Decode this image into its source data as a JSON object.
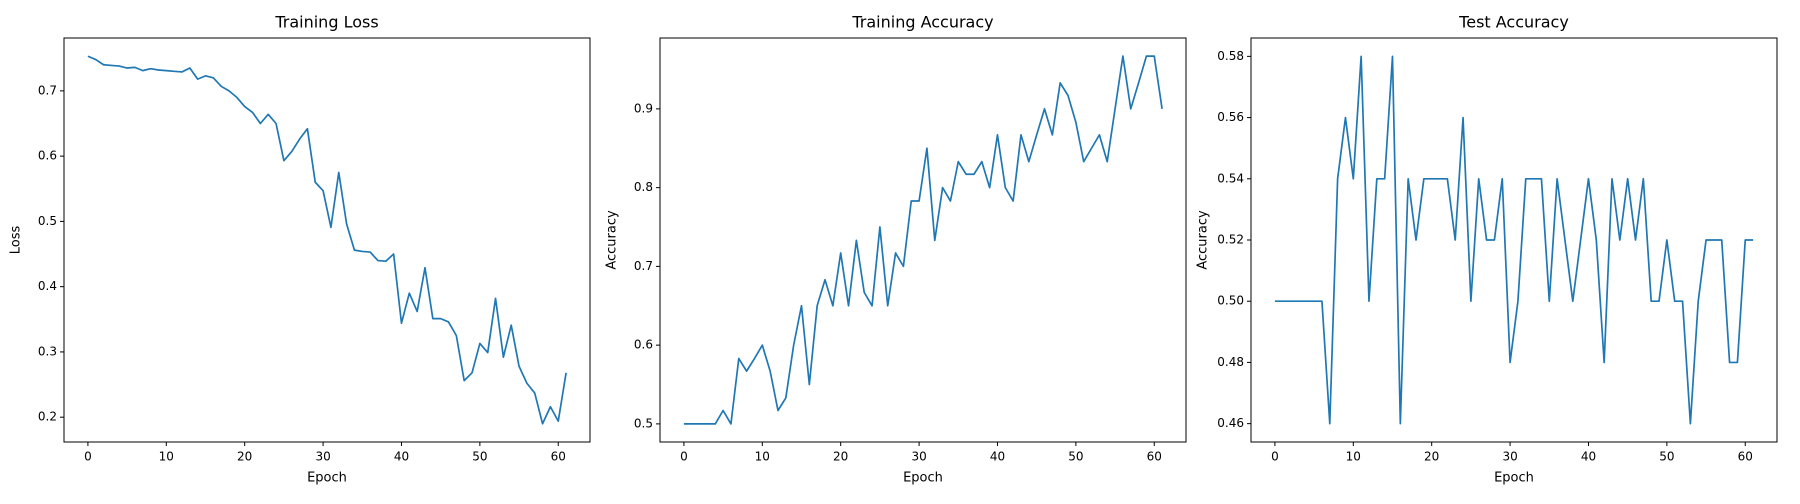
{
  "chart_data": [
    {
      "type": "line",
      "title": "Training Loss",
      "x_label": "Epoch",
      "y_label": "Loss",
      "x": [
        0,
        1,
        2,
        3,
        4,
        5,
        6,
        7,
        8,
        9,
        10,
        11,
        12,
        13,
        14,
        15,
        16,
        17,
        18,
        19,
        20,
        21,
        22,
        23,
        24,
        25,
        26,
        27,
        28,
        29,
        30,
        31,
        32,
        33,
        34,
        35,
        36,
        37,
        38,
        39,
        40,
        41,
        42,
        43,
        44,
        45,
        46,
        47,
        48,
        49,
        50,
        51,
        52,
        53,
        54,
        55,
        56,
        57,
        58,
        59,
        60,
        61
      ],
      "values": [
        0.753,
        0.748,
        0.74,
        0.739,
        0.738,
        0.735,
        0.736,
        0.731,
        0.734,
        0.732,
        0.731,
        0.73,
        0.729,
        0.735,
        0.718,
        0.723,
        0.72,
        0.707,
        0.7,
        0.69,
        0.676,
        0.667,
        0.65,
        0.664,
        0.65,
        0.593,
        0.607,
        0.626,
        0.642,
        0.56,
        0.547,
        0.491,
        0.575,
        0.496,
        0.456,
        0.454,
        0.453,
        0.44,
        0.439,
        0.45,
        0.344,
        0.39,
        0.362,
        0.429,
        0.351,
        0.351,
        0.346,
        0.325,
        0.256,
        0.268,
        0.313,
        0.299,
        0.382,
        0.292,
        0.341,
        0.278,
        0.252,
        0.237,
        0.19,
        0.216,
        0.194,
        0.268
      ],
      "color": "#1f77b4",
      "xlim": [
        -3.05,
        64.05
      ],
      "xticks": [
        0,
        10,
        20,
        30,
        40,
        50,
        60
      ],
      "ylim": [
        0.162,
        0.781
      ],
      "yticks": [
        0.2,
        0.3,
        0.4,
        0.5,
        0.6,
        0.7
      ],
      "grid": false
    },
    {
      "type": "line",
      "title": "Training Accuracy",
      "x_label": "Epoch",
      "y_label": "Accuracy",
      "x": [
        0,
        1,
        2,
        3,
        4,
        5,
        6,
        7,
        8,
        9,
        10,
        11,
        12,
        13,
        14,
        15,
        16,
        17,
        18,
        19,
        20,
        21,
        22,
        23,
        24,
        25,
        26,
        27,
        28,
        29,
        30,
        31,
        32,
        33,
        34,
        35,
        36,
        37,
        38,
        39,
        40,
        41,
        42,
        43,
        44,
        45,
        46,
        47,
        48,
        49,
        50,
        51,
        52,
        53,
        54,
        55,
        56,
        57,
        58,
        59,
        60,
        61
      ],
      "values": [
        0.5,
        0.5,
        0.5,
        0.5,
        0.5,
        0.517,
        0.5,
        0.583,
        0.567,
        0.583,
        0.6,
        0.567,
        0.517,
        0.533,
        0.6,
        0.65,
        0.55,
        0.65,
        0.683,
        0.65,
        0.717,
        0.65,
        0.733,
        0.667,
        0.65,
        0.75,
        0.65,
        0.717,
        0.7,
        0.783,
        0.783,
        0.85,
        0.733,
        0.8,
        0.783,
        0.833,
        0.817,
        0.817,
        0.833,
        0.8,
        0.867,
        0.8,
        0.783,
        0.867,
        0.833,
        0.867,
        0.9,
        0.867,
        0.933,
        0.917,
        0.883,
        0.833,
        0.85,
        0.867,
        0.833,
        0.9,
        0.967,
        0.9,
        0.933,
        0.967,
        0.967,
        0.9
      ],
      "color": "#1f77b4",
      "xlim": [
        -3.05,
        64.05
      ],
      "xticks": [
        0,
        10,
        20,
        30,
        40,
        50,
        60
      ],
      "ylim": [
        0.477,
        0.99
      ],
      "yticks": [
        0.5,
        0.6,
        0.7,
        0.8,
        0.9
      ],
      "grid": false
    },
    {
      "type": "line",
      "title": "Test Accuracy",
      "x_label": "Epoch",
      "y_label": "Accuracy",
      "x": [
        0,
        1,
        2,
        3,
        4,
        5,
        6,
        7,
        8,
        9,
        10,
        11,
        12,
        13,
        14,
        15,
        16,
        17,
        18,
        19,
        20,
        21,
        22,
        23,
        24,
        25,
        26,
        27,
        28,
        29,
        30,
        31,
        32,
        33,
        34,
        35,
        36,
        37,
        38,
        39,
        40,
        41,
        42,
        43,
        44,
        45,
        46,
        47,
        48,
        49,
        50,
        51,
        52,
        53,
        54,
        55,
        56,
        57,
        58,
        59,
        60,
        61
      ],
      "values": [
        0.5,
        0.5,
        0.5,
        0.5,
        0.5,
        0.5,
        0.5,
        0.46,
        0.54,
        0.56,
        0.54,
        0.58,
        0.5,
        0.54,
        0.54,
        0.58,
        0.46,
        0.54,
        0.52,
        0.54,
        0.54,
        0.54,
        0.54,
        0.52,
        0.56,
        0.5,
        0.54,
        0.52,
        0.52,
        0.54,
        0.48,
        0.5,
        0.54,
        0.54,
        0.54,
        0.5,
        0.54,
        0.52,
        0.5,
        0.52,
        0.54,
        0.52,
        0.48,
        0.54,
        0.52,
        0.54,
        0.52,
        0.54,
        0.5,
        0.5,
        0.52,
        0.5,
        0.5,
        0.46,
        0.5,
        0.52,
        0.52,
        0.52,
        0.48,
        0.48,
        0.52,
        0.52
      ],
      "color": "#1f77b4",
      "xlim": [
        -3.05,
        64.05
      ],
      "xticks": [
        0,
        10,
        20,
        30,
        40,
        50,
        60
      ],
      "ylim": [
        0.454,
        0.586
      ],
      "yticks": [
        0.46,
        0.48,
        {
          "value": 0.5,
          "label": "0.50"
        },
        0.52,
        0.54,
        0.56,
        0.58
      ],
      "grid": false
    }
  ]
}
